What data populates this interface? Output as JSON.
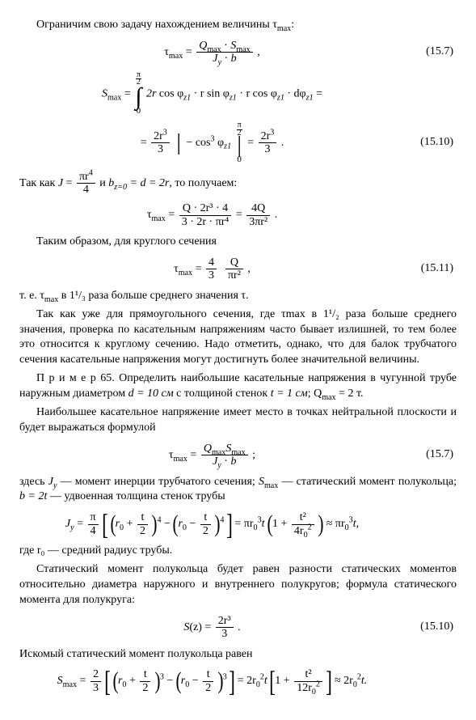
{
  "p_intro": "Ограничим свою задачу нахождением величины τ",
  "p_intro_suf": ":",
  "sub_max": "max",
  "eq1_num": "(15.7)",
  "eq1": {
    "lhs_t": "τ",
    "Q": "Q",
    "dot": " · ",
    "S": "S",
    "J": "J",
    "y": "y",
    "b": "b",
    "comma": " ,"
  },
  "eq2": {
    "Slhs": "S",
    "int_low": "0",
    "int_hi_pi": "π",
    "int_hi_2": "2",
    "two_r": "2r",
    "cos": " cos φ",
    "z1": "z1",
    "r_sin": " · r  sin φ",
    "r_cos": " · r  cos φ",
    "dphi": " · dφ",
    "eq": " ="
  },
  "eq3_num": "(15.10)",
  "eq3": {
    "two_r3": "2r",
    "three": "3",
    "minus_cos3": "− cos",
    "phi": " φ",
    "res_num": "2r",
    "res_den": "3",
    "dot": " ."
  },
  "p_since_a": "Так как  ",
  "p_since_b": "  и  ",
  "J_eq": {
    "J": "J",
    "eqs": " = ",
    "pi_r4": "πr",
    "four": "4"
  },
  "b_eq": "b",
  "b_idx": "z=0",
  "b_rhs": " = d = 2r",
  "p_since_c": ",  то  получаем:",
  "eq4": {
    "t": "τ",
    "num": "Q · 2r³ · 4",
    "den": "3 · 2r · πr⁴",
    "rn": "4Q",
    "rd": "3πr²",
    "dot": " ."
  },
  "p_thus": "Таким образом, для круглого сечения",
  "eq5_num": "(15.11)",
  "eq5": {
    "t": "τ",
    "fourthirds_n": "4",
    "fourthirds_d": "3",
    "Q": "Q",
    "pir2": "πr²",
    "comma": " ,"
  },
  "p_ie_a": "т. е. τ",
  "p_ie_b": " в 1¹/₃ раза больше среднего значения τ.",
  "p_rect": "Так как уже для прямоугольного сечения, где τmax в 1¹/₂ раза больше среднего значения, проверка по касательным напряжениям часто бывает излишней, то тем более это относится к круглому сечению. Надо отметить, однако, что для балок трубчатого сечения касательные напряжения могут достигнуть более значительной величины.",
  "p_ex_a": "П р и м е р  65. Определить наибольшие касательные напряжения в чугун­ной трубе наружным диаметром ",
  "p_ex_b": "d = 10 см",
  "p_ex_c": " с толщиной стенок ",
  "p_ex_d": "t = 1 см",
  "p_ex_e": "; Q",
  "p_ex_f": " = 2 т.",
  "p_maxtau": "Наибольшее касательное напряжение имеет место в точках нейтральной плоскости и будет выражаться формулой",
  "eq6_num": "(15.7)",
  "eq6": {
    "t": "τ",
    "Q": "Q",
    "S": "S",
    "J": "J",
    "y": "y",
    "b": "b",
    "semi": " ;"
  },
  "p_here_a": "здесь ",
  "p_here_b": "J",
  "p_here_c": " — момент инерции трубчатого сечения; ",
  "p_here_d": "S",
  "p_here_e": " — статический момент полукольца; ",
  "p_here_f": "b = 2t",
  "p_here_g": " — удвоенная толщина стенок трубы",
  "eq7": {
    "J": "J",
    "y": "y",
    "pi": "π",
    "four": "4",
    "r0": "r",
    "zero": "0",
    "t": "t",
    "two": "2",
    "p4": "4",
    "mid": " = πr",
    "mid_t": "t",
    "one_plus": "1 + ",
    "t2": "t²",
    "four_r02": "4r",
    "approx": " ≈ πr",
    "tend": "t,"
  },
  "p_r0": "где r₀ — средний радиус трубы.",
  "p_stat": "Статический момент полукольца будет равен разности статических мо­ментов относительно диаметра наружного и внутреннего полукругов; формула статического момента для полукруга:",
  "eq8_num": "(15.10)",
  "eq8": {
    "S": "S",
    "z": "(z)",
    "n": "2r³",
    "d": "3",
    "dot": " ."
  },
  "p_iskom": "Искомый статический момент полукольца равен",
  "eq9": {
    "S": "S",
    "twothirds_n": "2",
    "twothirds_d": "3",
    "r0": "r",
    "zero": "0",
    "t": "t",
    "two": "2",
    "p3": "3",
    "mid": " = 2r",
    "midt": "t",
    "one_plus": "1 + ",
    "t2": "t²",
    "twelve_r02": "12r",
    "approx": " ≈ 2r",
    "tend": "t."
  }
}
